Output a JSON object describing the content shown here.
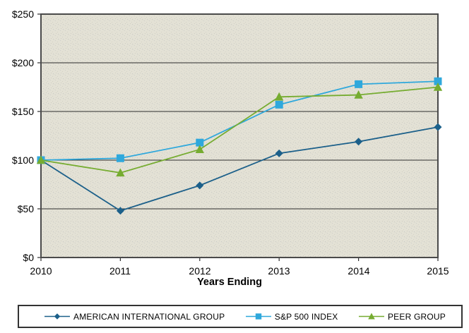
{
  "chart_data": {
    "type": "line",
    "title": "",
    "xlabel": "Years Ending",
    "ylabel": "",
    "x_categories": [
      "2010",
      "2011",
      "2012",
      "2013",
      "2014",
      "2015"
    ],
    "y_ticks": [
      "$0",
      "$50",
      "$100",
      "$150",
      "$200",
      "$250"
    ],
    "y_tick_values": [
      0,
      50,
      100,
      150,
      200,
      250
    ],
    "ylim": [
      0,
      250
    ],
    "grid": "horizontal",
    "legend_position": "bottom",
    "colors": {
      "plot_background": "#E3E1D5",
      "gridline": "#2d2d2d",
      "plot_border": "#4a4a4a",
      "legend_border": "#333333"
    },
    "series": [
      {
        "name": "AMERICAN INTERNATIONAL GROUP",
        "marker": "diamond",
        "color": "#1C608A",
        "values": [
          100,
          48,
          74,
          107,
          119,
          134
        ]
      },
      {
        "name": "S&P 500 INDEX",
        "marker": "square",
        "color": "#2FA8DC",
        "values": [
          100,
          102,
          118,
          157,
          178,
          181
        ]
      },
      {
        "name": "PEER GROUP",
        "marker": "triangle",
        "color": "#76AC31",
        "values": [
          100,
          87,
          111,
          165,
          167,
          175
        ]
      }
    ]
  }
}
